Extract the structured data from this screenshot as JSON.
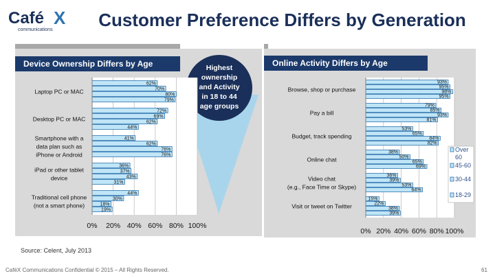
{
  "logo": {
    "text": "Café",
    "x_mark": "X",
    "tagline": "communications"
  },
  "title": "Customer Preference Differs by Generation",
  "callout": {
    "lines": [
      "Highest",
      "ownership",
      "and Activity",
      "in 18 to 44",
      "age groups"
    ]
  },
  "source": "Source: Celent, July 2013",
  "footer": "CaféX Communications Confidential © 2015 – All Rights Reserved.",
  "page_number": "61",
  "colors": {
    "header": "#1b3a6b",
    "panel_bg": "#d9d9d9",
    "bar_fill": "#bfe5f7",
    "bar_edge": "#2d74b0"
  },
  "chart_data": [
    {
      "type": "bar",
      "orientation": "horizontal",
      "title": "Device Ownership Differs by Age",
      "categories": [
        [
          "Laptop PC or MAC"
        ],
        [
          "Desktop PC or MAC"
        ],
        [
          "Smartphone with a",
          "data plan such as",
          "iPhone or Android"
        ],
        [
          "iPad or other tablet",
          "device"
        ],
        [
          "Traditional cell phone",
          "(not a smart phone)"
        ]
      ],
      "series": [
        {
          "values": [
            62,
            72,
            41,
            36,
            44
          ]
        },
        {
          "values": [
            70,
            69,
            62,
            37,
            30
          ]
        },
        {
          "values": [
            80,
            62,
            76,
            43,
            18
          ]
        },
        {
          "values": [
            79,
            44,
            76,
            31,
            19
          ]
        }
      ],
      "xlim": [
        0,
        100
      ],
      "xticks": [
        "0%",
        "20%",
        "40%",
        "60%",
        "80%",
        "100%"
      ],
      "grid": true
    },
    {
      "type": "bar",
      "orientation": "horizontal",
      "title": "Online Activity Differs by Age",
      "categories": [
        [
          "Browse, shop or purchase"
        ],
        [
          "Pay a bill"
        ],
        [
          "Budget, track spending"
        ],
        [
          "Online chat"
        ],
        [
          "Video chat",
          "(e.g., Face Time or Skype)"
        ],
        [
          "Visit or tweet on Twitter"
        ]
      ],
      "series": [
        {
          "name": "Over 60",
          "values": [
            93,
            79,
            53,
            38,
            36,
            15
          ]
        },
        {
          "name": "45-60",
          "values": [
            95,
            85,
            65,
            50,
            39,
            22
          ]
        },
        {
          "name": "30-44",
          "values": [
            98,
            93,
            84,
            65,
            53,
            38
          ]
        },
        {
          "name": "18-29",
          "values": [
            95,
            81,
            82,
            69,
            64,
            39
          ]
        }
      ],
      "xlim": [
        0,
        100
      ],
      "xticks": [
        "0%",
        "20%",
        "40%",
        "60%",
        "80%",
        "100%"
      ],
      "grid": true,
      "legend": "right"
    }
  ]
}
